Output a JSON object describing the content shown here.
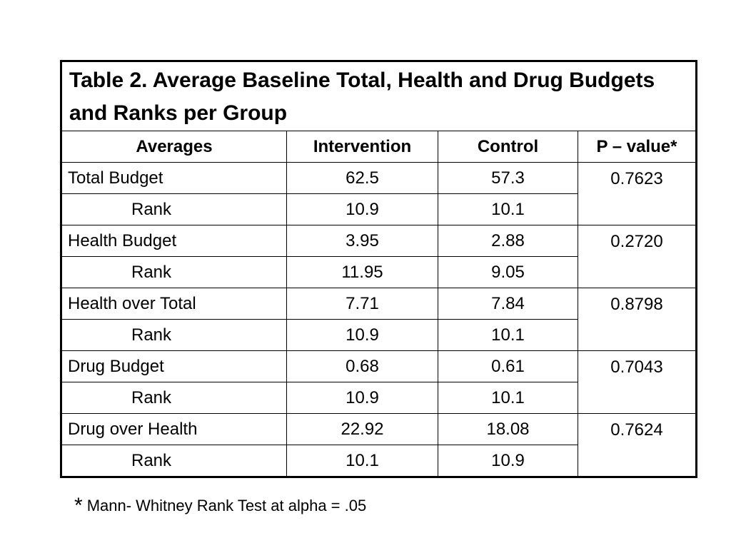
{
  "table": {
    "title": "Table 2. Average Baseline Total, Health and Drug Budgets  and Ranks per Group",
    "headers": [
      "Averages",
      "Intervention",
      "Control",
      "P – value*"
    ],
    "groups": [
      {
        "label": "Total Budget",
        "intervention": "62.5",
        "control": "57.3",
        "p_value": "0.7623",
        "rank_label": "Rank",
        "rank_intervention": "10.9",
        "rank_control": "10.1"
      },
      {
        "label": "Health Budget",
        "intervention": "3.95",
        "control": "2.88",
        "p_value": "0.2720",
        "rank_label": "Rank",
        "rank_intervention": "11.95",
        "rank_control": "9.05"
      },
      {
        "label": "Health over Total",
        "intervention": "7.71",
        "control": "7.84",
        "p_value": "0.8798",
        "rank_label": "Rank",
        "rank_intervention": "10.9",
        "rank_control": "10.1"
      },
      {
        "label": "Drug Budget",
        "intervention": "0.68",
        "control": "0.61",
        "p_value": "0.7043",
        "rank_label": "Rank",
        "rank_intervention": "10.9",
        "rank_control": "10.1"
      },
      {
        "label": "Drug over Health",
        "intervention": "22.92",
        "control": "18.08",
        "p_value": "0.7624",
        "rank_label": "Rank",
        "rank_intervention": "10.1",
        "rank_control": "10.9"
      }
    ]
  },
  "footnote": {
    "marker": "*",
    "text": "Mann- Whitney Rank Test at alpha = .05"
  }
}
